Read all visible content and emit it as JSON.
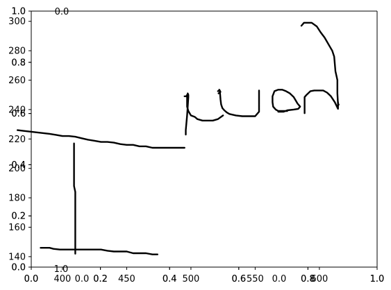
{
  "chart_data": {
    "type": "line",
    "title": "",
    "xlabel": "",
    "ylabel": "",
    "grid": false,
    "axes": [
      {
        "role": "overlay-unit",
        "x_ticks": [
          "0.0",
          "0.2",
          "0.4",
          "0.6",
          "0.8",
          "1.0"
        ],
        "y_ticks": [
          "0.0",
          "0.2",
          "0.4",
          "0.6",
          "0.8",
          "1.0"
        ]
      },
      {
        "role": "overlay-unit-2",
        "x_ticks": [
          "0.0",
          "0.2",
          "0.4",
          "0.6",
          "0.8",
          "1.0"
        ],
        "y_ticks": [
          "0.0",
          "0.2",
          "0.4",
          "0.6",
          "0.8",
          "1.0"
        ]
      },
      {
        "role": "main",
        "xlim": [
          355,
          596
        ],
        "ylim": [
          135,
          301
        ],
        "x_ticks": [
          "400",
          "450",
          "500",
          "550",
          "600"
        ],
        "y_ticks": [
          "140",
          "160",
          "180",
          "200",
          "220",
          "240",
          "260",
          "280",
          "300"
        ]
      },
      {
        "role": "small-1",
        "x_ticks": [
          "0.0"
        ],
        "y_ticks": [
          "1.0"
        ]
      },
      {
        "role": "small-2",
        "x_ticks": [
          "0.0"
        ],
        "y_ticks": [
          "1.0"
        ]
      }
    ],
    "series": [
      {
        "x": [
          365,
          370,
          380,
          390,
          395,
          400,
          405,
          410,
          415,
          420,
          425,
          430,
          435,
          440,
          445,
          450,
          455,
          460,
          465,
          470,
          475,
          480,
          485,
          490,
          495
        ],
        "y": [
          226,
          225.5,
          224.5,
          223.5,
          222.8,
          222,
          222,
          221.5,
          220.5,
          219.5,
          218.8,
          218,
          218,
          217.5,
          216.5,
          216,
          216,
          215,
          215,
          214,
          214,
          214,
          214,
          214,
          214
        ]
      },
      {
        "x": [
          409,
          409,
          409.5,
          410,
          410,
          410,
          410
        ],
        "y": [
          217,
          188,
          186,
          184,
          180,
          160,
          142
        ]
      },
      {
        "x": [
          383,
          390,
          393,
          398,
          402,
          407,
          412,
          416,
          420,
          425,
          430,
          435,
          440,
          445,
          450,
          455,
          460,
          465,
          470,
          474
        ],
        "y": [
          146,
          146,
          145.3,
          144.8,
          144.8,
          144.8,
          144.8,
          144.8,
          144.8,
          144.8,
          144.8,
          144,
          143.5,
          143.5,
          143.5,
          142.3,
          142.3,
          142.3,
          141.5,
          141.5
        ]
      },
      {
        "x": [
          496,
          496,
          497,
          497.5,
          498,
          498,
          497.5
        ],
        "y": [
          223,
          226,
          236,
          242,
          248.5,
          250,
          251
        ]
      },
      {
        "x": [
          495,
          496.5,
          497,
          497,
          498,
          500,
          503,
          505,
          509,
          513,
          517,
          521,
          525
        ],
        "y": [
          249,
          249,
          250,
          242,
          239,
          236,
          235,
          233.5,
          232.5,
          232.5,
          232.5,
          233.5,
          236
        ]
      },
      {
        "x": [
          521,
          522.5,
          523,
          523.5,
          524.5,
          526,
          528,
          530,
          535,
          540,
          545,
          550,
          552,
          553,
          553,
          553
        ],
        "y": [
          252.5,
          253,
          247,
          243.5,
          241,
          239.5,
          238,
          237,
          236,
          235.5,
          235.5,
          235.5,
          237.5,
          238.5,
          246,
          253
        ]
      },
      {
        "x": [
          522,
          523,
          521.5
        ],
        "y": [
          253.5,
          252,
          251
        ]
      },
      {
        "x": [
          575,
          573,
          568,
          566,
          564,
          563.5,
          563.5,
          565,
          568,
          571,
          574,
          577,
          580,
          583,
          585,
          583.5,
          580,
          575,
          572,
          568
        ],
        "y": [
          239,
          239,
          239,
          240,
          242,
          245,
          249,
          252.5,
          253.5,
          253.5,
          252.5,
          251,
          248.5,
          244,
          242,
          240.5,
          240,
          239.5,
          238.5,
          238.5
        ]
      },
      {
        "x": [
          588.5,
          588.5,
          588.5,
          590,
          593,
          596,
          600,
          603,
          606,
          609,
          612,
          614.5,
          614.5,
          614.5,
          615
        ],
        "y": [
          237.5,
          244,
          248.5,
          250,
          252.5,
          253,
          253,
          253,
          251.5,
          249,
          245,
          240.5,
          245,
          242.5,
          243.5
        ]
      },
      {
        "x": [
          614.5,
          614,
          614,
          613.5,
          612.5,
          611.5,
          610,
          608,
          606,
          604,
          601,
          598,
          594,
          591,
          588,
          586
        ],
        "y": [
          243.5,
          251,
          260,
          262,
          266,
          276,
          280,
          283,
          286,
          289,
          292.5,
          296.5,
          299,
          299,
          299,
          297
        ]
      }
    ]
  }
}
